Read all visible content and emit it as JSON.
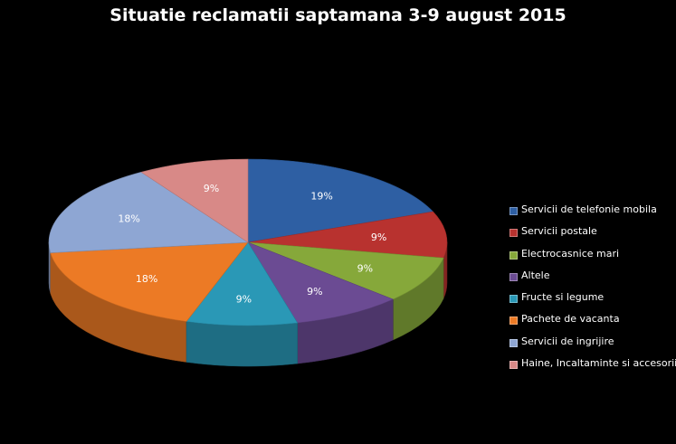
{
  "chart_data": {
    "type": "pie",
    "title": "Situatie reclamatii saptamana 3-9 august 2015",
    "legend_position": "right",
    "categories": [
      "Servicii de telefonie mobila",
      "Servicii postale",
      "Electrocasnice mari",
      "Altele",
      "Fructe si legume",
      "Pachete de vacanta",
      "Servicii de ingrijire",
      "Haine, Incaltaminte  si accesorii"
    ],
    "values": [
      19,
      9,
      9,
      9,
      9,
      18,
      18,
      9
    ],
    "value_labels": [
      "19%",
      "9%",
      "9%",
      "9%",
      "9%",
      "18%",
      "18%",
      "9%"
    ],
    "colors": [
      "#2e5fa3",
      "#b8322f",
      "#86a83a",
      "#6b4b93",
      "#2a98b6",
      "#ec7a25",
      "#8ea6d3",
      "#d88987"
    ]
  }
}
